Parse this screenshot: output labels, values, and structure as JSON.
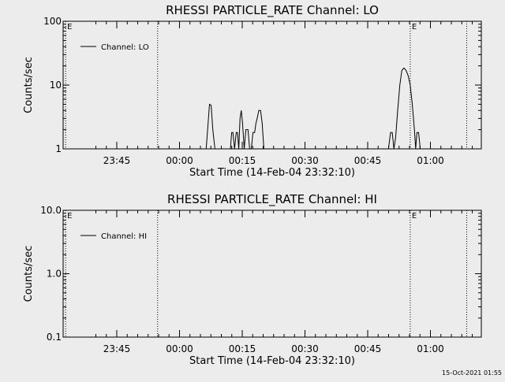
{
  "footer": {
    "timestamp": "15-Oct-2021 01:55"
  },
  "chart_data": [
    {
      "type": "line",
      "title": "RHESSI PARTICLE_RATE Channel: LO",
      "xlabel": "Start Time (14-Feb-04 23:32:10)",
      "ylabel": "Counts/sec",
      "y_scale": "log",
      "ylim": [
        1,
        100
      ],
      "y_ticks": [
        "1",
        "10",
        "100"
      ],
      "x_unit": "minutes after 23:32:10",
      "xlim": [
        0,
        100
      ],
      "x_ticks": [
        {
          "label": "23:45",
          "value": 12.83
        },
        {
          "label": "00:00",
          "value": 27.83
        },
        {
          "label": "00:15",
          "value": 42.83
        },
        {
          "label": "00:30",
          "value": 57.83
        },
        {
          "label": "00:45",
          "value": 72.83
        },
        {
          "label": "01:00",
          "value": 87.83
        }
      ],
      "markers": [
        {
          "label": "E",
          "x": 0.6
        },
        {
          "label": "",
          "x": 22.6
        },
        {
          "label": "E",
          "x": 83.0
        },
        {
          "label": "",
          "x": 96.5
        }
      ],
      "legend": {
        "position": "top-left"
      },
      "grid": false,
      "series": [
        {
          "name": "Channel: LO",
          "x": [
            34.2,
            35.0,
            35.4,
            35.8,
            36.3,
            36.8,
            40.0,
            40.3,
            40.6,
            41.0,
            41.4,
            41.7,
            42.0,
            42.3,
            42.6,
            42.9,
            43.3,
            43.7,
            44.2,
            44.6,
            45.0,
            45.4,
            45.8,
            46.1,
            46.4,
            46.8,
            47.2,
            47.6,
            48.0,
            48.4,
            48.8,
            49.2,
            77.8,
            78.3,
            78.7,
            79.1,
            79.5,
            80.0,
            80.5,
            81.0,
            81.5,
            82.0,
            82.5,
            83.0,
            83.5,
            84.0,
            84.3,
            84.6,
            85.0,
            85.4,
            85.8
          ],
          "y": [
            1,
            5,
            4.8,
            2,
            1,
            1,
            1,
            1.8,
            1.8,
            1,
            1.8,
            1.8,
            1,
            3,
            4,
            2.5,
            1,
            2,
            2,
            1,
            1,
            1.8,
            1.8,
            2.5,
            3,
            4,
            4,
            2.5,
            1,
            1,
            1,
            1,
            1,
            1.8,
            1.8,
            1,
            1.5,
            4,
            10,
            17,
            18.5,
            17,
            14,
            10,
            5,
            2,
            1,
            1.8,
            1.8,
            1,
            1
          ]
        }
      ]
    },
    {
      "type": "line",
      "title": "RHESSI PARTICLE_RATE Channel: HI",
      "xlabel": "Start Time (14-Feb-04 23:32:10)",
      "ylabel": "Counts/sec",
      "y_scale": "log",
      "ylim": [
        0.1,
        10
      ],
      "y_ticks": [
        "0.1",
        "1.0",
        "10.0"
      ],
      "x_unit": "minutes after 23:32:10",
      "xlim": [
        0,
        100
      ],
      "x_ticks": [
        {
          "label": "23:45",
          "value": 12.83
        },
        {
          "label": "00:00",
          "value": 27.83
        },
        {
          "label": "00:15",
          "value": 42.83
        },
        {
          "label": "00:30",
          "value": 57.83
        },
        {
          "label": "00:45",
          "value": 72.83
        },
        {
          "label": "01:00",
          "value": 87.83
        }
      ],
      "markers": [
        {
          "label": "E",
          "x": 0.6
        },
        {
          "label": "",
          "x": 22.6
        },
        {
          "label": "E",
          "x": 83.0
        },
        {
          "label": "",
          "x": 96.5
        }
      ],
      "legend": {
        "position": "top-left"
      },
      "grid": false,
      "series": [
        {
          "name": "Channel: HI",
          "x": [],
          "y": []
        }
      ]
    }
  ]
}
